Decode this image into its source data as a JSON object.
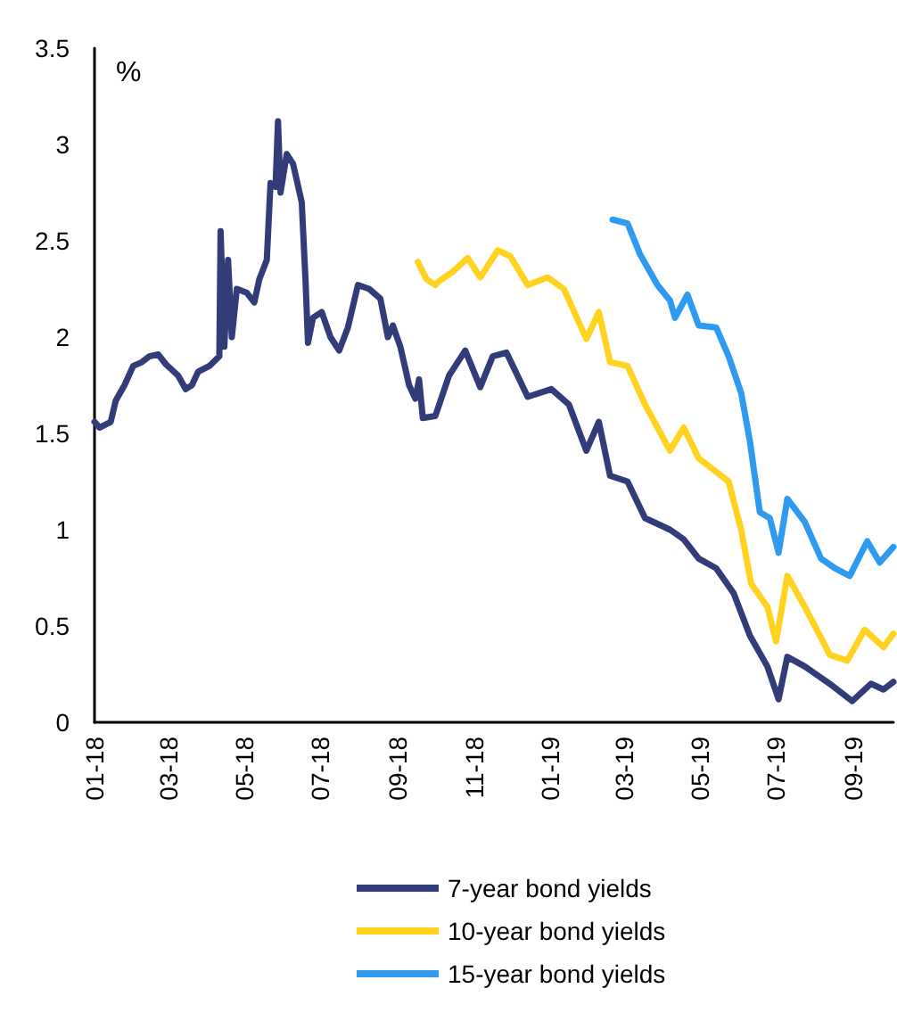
{
  "chart_data": {
    "type": "line",
    "ylabel": "%",
    "xlim": [
      "2018-01-01",
      "2019-10-03"
    ],
    "ylim": [
      0,
      3.5
    ],
    "yticks": [
      0,
      0.5,
      1,
      1.5,
      2,
      2.5,
      3,
      3.5
    ],
    "xticks": [
      {
        "value": "2018-01-01",
        "label": "01-18"
      },
      {
        "value": "2018-03-01",
        "label": "03-18"
      },
      {
        "value": "2018-05-01",
        "label": "05-18"
      },
      {
        "value": "2018-07-01",
        "label": "07-18"
      },
      {
        "value": "2018-09-01",
        "label": "09-18"
      },
      {
        "value": "2018-11-01",
        "label": "11-18"
      },
      {
        "value": "2019-01-01",
        "label": "01-19"
      },
      {
        "value": "2019-03-01",
        "label": "03-19"
      },
      {
        "value": "2019-05-01",
        "label": "05-19"
      },
      {
        "value": "2019-07-01",
        "label": "07-19"
      },
      {
        "value": "2019-09-01",
        "label": "09-19"
      }
    ],
    "grid": false,
    "legend": "bottom",
    "marker": "none",
    "line_style": "solid",
    "series": [
      {
        "name": "7-year bond yields",
        "color": "#323c78",
        "x": [
          "2018-01-01",
          "2018-01-05",
          "2018-01-14",
          "2018-01-18",
          "2018-01-25",
          "2018-02-01",
          "2018-02-08",
          "2018-02-14",
          "2018-02-21",
          "2018-02-27",
          "2018-03-09",
          "2018-03-15",
          "2018-03-20",
          "2018-03-25",
          "2018-04-03",
          "2018-04-11",
          "2018-04-12",
          "2018-04-15",
          "2018-04-18",
          "2018-04-21",
          "2018-04-25",
          "2018-05-03",
          "2018-05-09",
          "2018-05-13",
          "2018-05-19",
          "2018-05-22",
          "2018-05-26",
          "2018-05-28",
          "2018-05-30",
          "2018-06-04",
          "2018-06-09",
          "2018-06-16",
          "2018-06-19",
          "2018-06-21",
          "2018-06-25",
          "2018-07-02",
          "2018-07-09",
          "2018-07-16",
          "2018-07-23",
          "2018-07-31",
          "2018-08-09",
          "2018-08-18",
          "2018-08-24",
          "2018-08-28",
          "2018-09-03",
          "2018-09-10",
          "2018-09-15",
          "2018-09-18",
          "2018-09-21",
          "2018-10-01",
          "2018-10-12",
          "2018-10-25",
          "2018-11-06",
          "2018-11-16",
          "2018-11-27",
          "2018-12-14",
          "2019-01-02",
          "2019-01-16",
          "2019-01-30",
          "2019-02-09",
          "2019-02-18",
          "2019-03-04",
          "2019-03-18",
          "2019-04-07",
          "2019-04-18",
          "2019-04-30",
          "2019-05-14",
          "2019-05-28",
          "2019-06-10",
          "2019-06-24",
          "2019-07-03",
          "2019-07-10",
          "2019-07-24",
          "2019-08-13",
          "2019-08-31",
          "2019-09-15",
          "2019-09-25",
          "2019-10-03"
        ],
        "values": [
          1.56,
          1.53,
          1.56,
          1.67,
          1.75,
          1.85,
          1.87,
          1.9,
          1.91,
          1.86,
          1.8,
          1.73,
          1.75,
          1.82,
          1.85,
          1.9,
          2.55,
          1.95,
          2.4,
          2.0,
          2.25,
          2.23,
          2.18,
          2.3,
          2.4,
          2.8,
          2.78,
          3.12,
          2.75,
          2.95,
          2.9,
          2.7,
          2.3,
          1.97,
          2.1,
          2.13,
          2.0,
          1.93,
          2.05,
          2.27,
          2.25,
          2.2,
          2.0,
          2.06,
          1.95,
          1.75,
          1.68,
          1.78,
          1.58,
          1.59,
          1.8,
          1.93,
          1.74,
          1.9,
          1.92,
          1.69,
          1.73,
          1.65,
          1.41,
          1.56,
          1.28,
          1.25,
          1.06,
          1.0,
          0.95,
          0.85,
          0.8,
          0.67,
          0.45,
          0.29,
          0.12,
          0.34,
          0.29,
          0.2,
          0.11,
          0.2,
          0.17,
          0.21
        ]
      },
      {
        "name": "10-year bond yields",
        "color": "#ffd320",
        "x": [
          "2018-09-17",
          "2018-09-24",
          "2018-10-01",
          "2018-10-04",
          "2018-10-15",
          "2018-10-27",
          "2018-11-06",
          "2018-11-20",
          "2018-11-30",
          "2018-12-14",
          "2018-12-30",
          "2019-01-12",
          "2019-01-30",
          "2019-02-09",
          "2019-02-18",
          "2019-03-04",
          "2019-03-18",
          "2019-04-07",
          "2019-04-18",
          "2019-04-30",
          "2019-05-24",
          "2019-06-03",
          "2019-06-11",
          "2019-06-24",
          "2019-07-01",
          "2019-07-10",
          "2019-07-24",
          "2019-08-13",
          "2019-08-27",
          "2019-09-10",
          "2019-09-25",
          "2019-10-03"
        ],
        "values": [
          2.39,
          2.3,
          2.27,
          2.29,
          2.34,
          2.41,
          2.31,
          2.45,
          2.42,
          2.27,
          2.31,
          2.25,
          1.99,
          2.13,
          1.87,
          1.85,
          1.65,
          1.41,
          1.53,
          1.37,
          1.25,
          1.0,
          0.72,
          0.6,
          0.42,
          0.76,
          0.6,
          0.35,
          0.32,
          0.48,
          0.39,
          0.46
        ]
      },
      {
        "name": "15-year bond yields",
        "color": "#2e9bf0",
        "x": [
          "2019-02-20",
          "2019-03-04",
          "2019-03-14",
          "2019-03-28",
          "2019-04-07",
          "2019-04-11",
          "2019-04-21",
          "2019-04-30",
          "2019-05-14",
          "2019-05-24",
          "2019-06-03",
          "2019-06-10",
          "2019-06-18",
          "2019-06-26",
          "2019-07-03",
          "2019-07-10",
          "2019-07-24",
          "2019-08-06",
          "2019-08-17",
          "2019-08-29",
          "2019-09-12",
          "2019-09-22",
          "2019-10-03"
        ],
        "values": [
          2.61,
          2.59,
          2.43,
          2.27,
          2.19,
          2.1,
          2.22,
          2.06,
          2.05,
          1.9,
          1.71,
          1.46,
          1.09,
          1.06,
          0.88,
          1.16,
          1.04,
          0.85,
          0.8,
          0.76,
          0.94,
          0.83,
          0.91
        ]
      }
    ]
  }
}
